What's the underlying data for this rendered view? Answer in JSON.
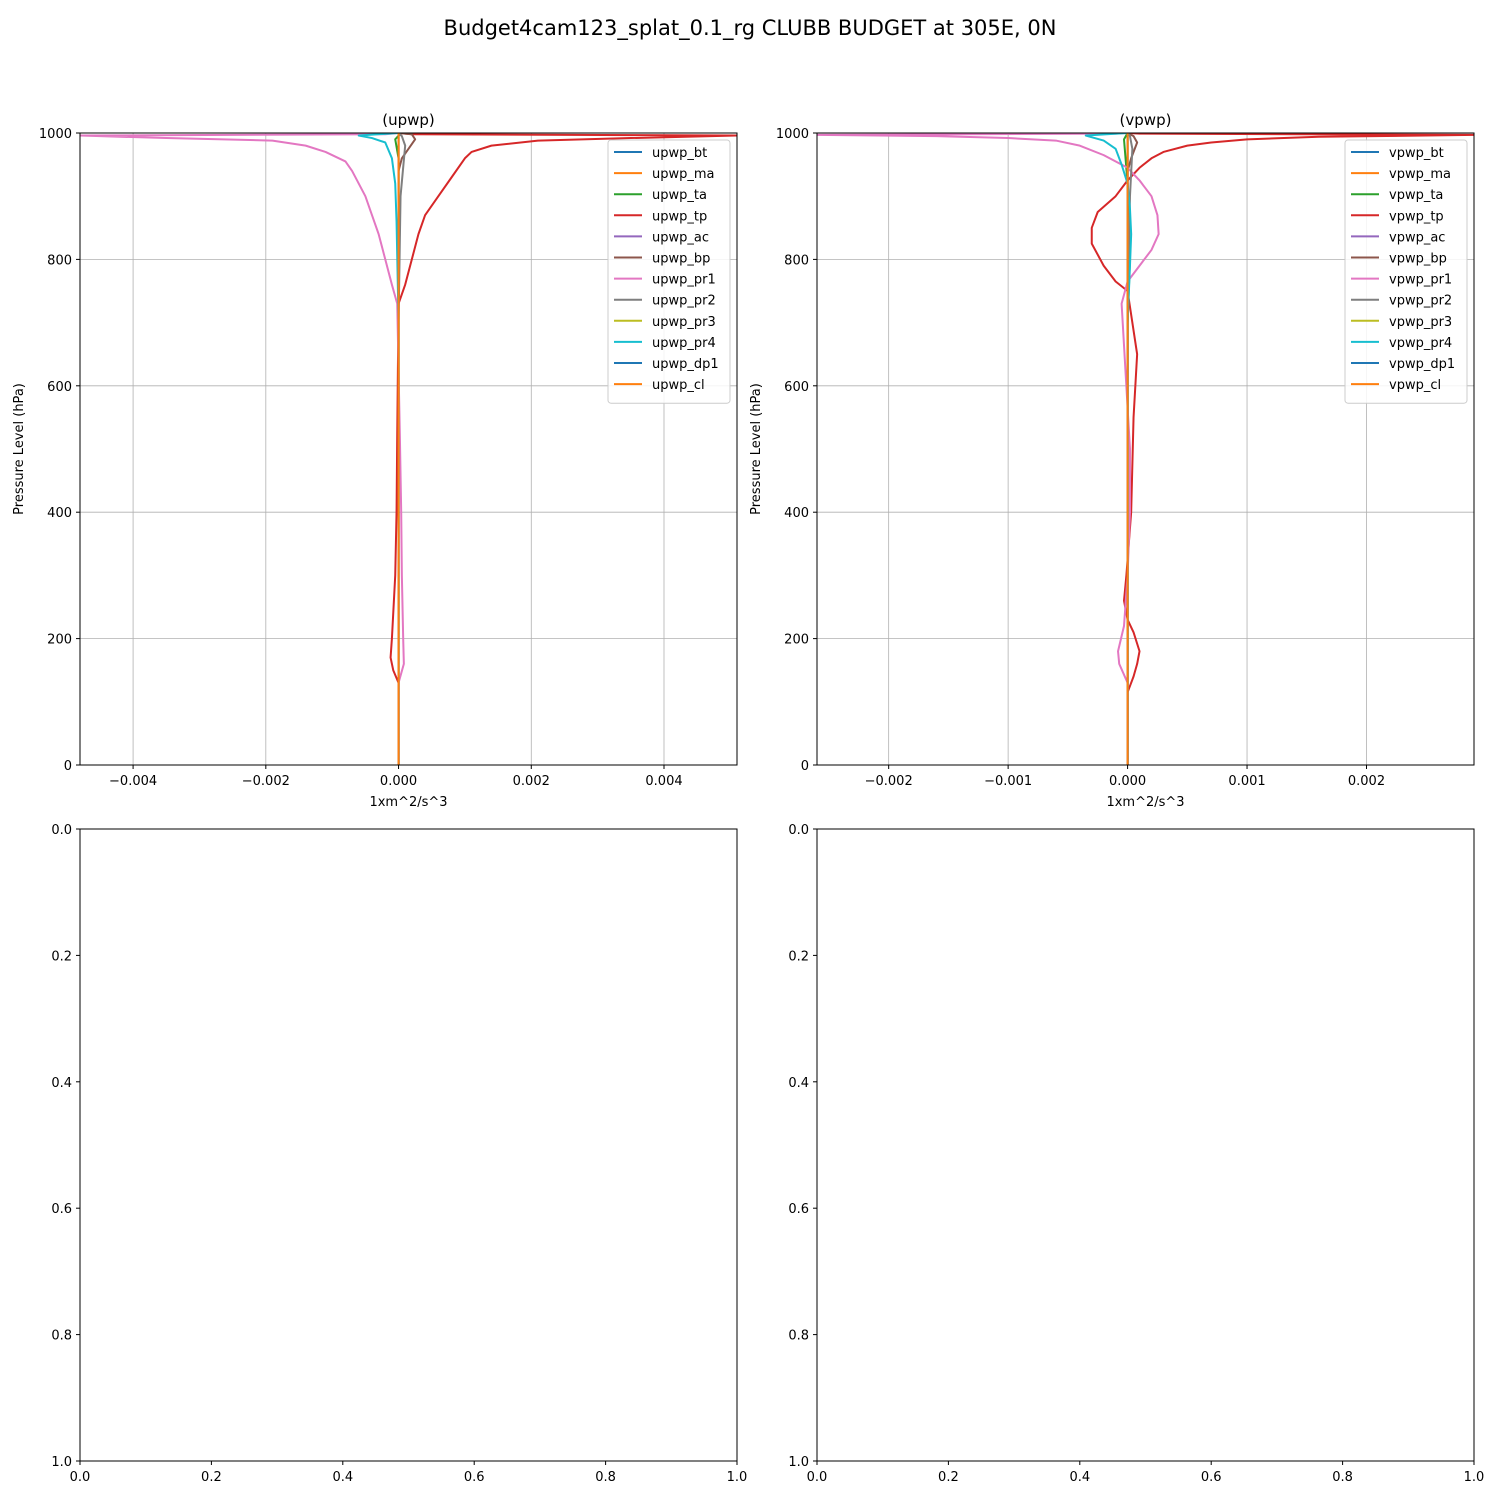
{
  "figure": {
    "title": "Budget4cam123_splat_0.1_rg CLUBB BUDGET at 305E, 0N"
  },
  "chart_data": [
    {
      "type": "line",
      "title": "(upwp)",
      "xlabel": "1xm^2/s^3",
      "ylabel": "Pressure Level (hPa)",
      "xlim": [
        -0.0048,
        0.0051
      ],
      "ylim": [
        1000,
        0
      ],
      "xticks": [
        -0.004,
        -0.002,
        0.0,
        0.002,
        0.004
      ],
      "xtick_labels": [
        "−0.004",
        "−0.002",
        "0.000",
        "0.002",
        "0.004"
      ],
      "yticks": [
        0,
        200,
        400,
        600,
        800,
        1000
      ],
      "ytick_labels": [
        "0",
        "200",
        "400",
        "600",
        "800",
        "1000"
      ],
      "grid": true,
      "legend": "top-right",
      "series": [
        {
          "name": "upwp_bt",
          "color": "#1f77b4",
          "x": [
            0,
            0,
            0,
            0
          ],
          "y": [
            0,
            500,
            990,
            1000
          ]
        },
        {
          "name": "upwp_ma",
          "color": "#ff7f0e",
          "x": [
            0,
            0,
            0,
            0
          ],
          "y": [
            0,
            500,
            990,
            1000
          ]
        },
        {
          "name": "upwp_ta",
          "color": "#2ca02c",
          "x": [
            0,
            0,
            0,
            0,
            -5e-05,
            2e-05,
            0
          ],
          "y": [
            0,
            500,
            900,
            960,
            990,
            998,
            1000
          ]
        },
        {
          "name": "upwp_tp",
          "color": "#d62728",
          "x": [
            0,
            0,
            -8e-05,
            -0.00012,
            -0.0001,
            -5e-05,
            -3e-05,
            -2e-05,
            0,
            0.0001,
            0.0002,
            0.0003,
            0.0004,
            0.0006,
            0.0008,
            0.001,
            0.0011,
            0.0014,
            0.0021,
            0.0035,
            0.0051,
            0.0002,
            0
          ],
          "y": [
            0,
            130,
            150,
            170,
            200,
            300,
            400,
            520,
            730,
            760,
            800,
            840,
            870,
            900,
            930,
            960,
            970,
            980,
            988,
            992,
            996,
            998,
            1000
          ]
        },
        {
          "name": "upwp_ac",
          "color": "#9467bd",
          "x": [
            0,
            0,
            0,
            0
          ],
          "y": [
            0,
            500,
            990,
            1000
          ]
        },
        {
          "name": "upwp_bp",
          "color": "#8c564b",
          "x": [
            0,
            0,
            0,
            5e-05,
            0.00015,
            0.00025,
            0.0002,
            0
          ],
          "y": [
            0,
            500,
            940,
            960,
            975,
            990,
            998,
            1000
          ]
        },
        {
          "name": "upwp_pr1",
          "color": "#e377c2",
          "x": [
            0,
            0,
            8e-05,
            7e-05,
            5e-05,
            4e-05,
            2e-05,
            -2e-05,
            -0.0001,
            -0.0002,
            -0.0003,
            -0.0004,
            -0.0005,
            -0.0006,
            -0.0007,
            -0.0008,
            -0.0011,
            -0.0014,
            -0.0019,
            -0.0035,
            -0.0048,
            -0.0002,
            0
          ],
          "y": [
            0,
            130,
            160,
            200,
            300,
            400,
            520,
            730,
            760,
            800,
            840,
            870,
            900,
            920,
            940,
            955,
            970,
            980,
            988,
            992,
            996,
            998,
            1000
          ]
        },
        {
          "name": "upwp_pr2",
          "color": "#7f7f7f",
          "x": [
            0,
            0,
            3e-05,
            0.0001,
            5e-05,
            0
          ],
          "y": [
            0,
            700,
            900,
            980,
            995,
            1000
          ]
        },
        {
          "name": "upwp_pr3",
          "color": "#bcbd22",
          "x": [
            0,
            0,
            0,
            0
          ],
          "y": [
            0,
            500,
            990,
            1000
          ]
        },
        {
          "name": "upwp_pr4",
          "color": "#17becf",
          "x": [
            0,
            0,
            -3e-05,
            -5e-05,
            -0.0001,
            -0.0002,
            -0.0004,
            -0.0006,
            0
          ],
          "y": [
            0,
            700,
            860,
            920,
            960,
            985,
            992,
            996,
            1000
          ]
        },
        {
          "name": "upwp_dp1",
          "color": "#1f77b4",
          "x": [
            0,
            0,
            0,
            0
          ],
          "y": [
            0,
            500,
            990,
            1000
          ]
        },
        {
          "name": "upwp_cl",
          "color": "#ff7f0e",
          "x": [
            0,
            0,
            0,
            0
          ],
          "y": [
            0,
            500,
            990,
            1000
          ]
        }
      ]
    },
    {
      "type": "line",
      "title": "(vpwp)",
      "xlabel": "1xm^2/s^3",
      "ylabel": "Pressure Level (hPa)",
      "xlim": [
        -0.0026,
        0.0029
      ],
      "ylim": [
        1000,
        0
      ],
      "xticks": [
        -0.002,
        -0.001,
        0.0,
        0.001,
        0.002
      ],
      "xtick_labels": [
        "−0.002",
        "−0.001",
        "0.000",
        "0.001",
        "0.002"
      ],
      "yticks": [
        0,
        200,
        400,
        600,
        800,
        1000
      ],
      "ytick_labels": [
        "0",
        "200",
        "400",
        "600",
        "800",
        "1000"
      ],
      "grid": true,
      "legend": "top-right",
      "series": [
        {
          "name": "vpwp_bt",
          "color": "#1f77b4",
          "x": [
            0,
            0,
            0,
            0
          ],
          "y": [
            0,
            500,
            990,
            1000
          ]
        },
        {
          "name": "vpwp_ma",
          "color": "#ff7f0e",
          "x": [
            0,
            0,
            0,
            0
          ],
          "y": [
            0,
            500,
            990,
            1000
          ]
        },
        {
          "name": "vpwp_ta",
          "color": "#2ca02c",
          "x": [
            0,
            0,
            2e-05,
            1e-05,
            0,
            -3e-05,
            0
          ],
          "y": [
            0,
            700,
            800,
            860,
            920,
            990,
            1000
          ]
        },
        {
          "name": "vpwp_tp",
          "color": "#d62728",
          "x": [
            0,
            0,
            5e-05,
            8e-05,
            0.0001,
            5e-05,
            0,
            -3e-05,
            -1e-05,
            3e-05,
            5e-05,
            8e-05,
            0,
            -0.0001,
            -0.0002,
            -0.0003,
            -0.0003,
            -0.00025,
            -0.0001,
            0,
            0.0001,
            0.0002,
            0.0003,
            0.0005,
            0.0007,
            0.001,
            0.0016,
            0.0029,
            0.0001,
            0
          ],
          "y": [
            0,
            115,
            140,
            160,
            180,
            210,
            230,
            260,
            300,
            400,
            550,
            650,
            750,
            765,
            790,
            825,
            850,
            875,
            900,
            925,
            945,
            960,
            970,
            980,
            985,
            990,
            994,
            997,
            999,
            1000
          ]
        },
        {
          "name": "vpwp_ac",
          "color": "#9467bd",
          "x": [
            0,
            0,
            0,
            0
          ],
          "y": [
            0,
            500,
            990,
            1000
          ]
        },
        {
          "name": "vpwp_bp",
          "color": "#8c564b",
          "x": [
            0,
            0,
            0,
            3e-05,
            8e-05,
            5e-05,
            0
          ],
          "y": [
            0,
            500,
            940,
            960,
            985,
            995,
            1000
          ]
        },
        {
          "name": "vpwp_pr1",
          "color": "#e377c2",
          "x": [
            0,
            0,
            -7e-05,
            -8e-05,
            -3e-05,
            0,
            2e-05,
            2e-05,
            -5e-05,
            0,
            0.0001,
            0.0002,
            0.00026,
            0.00025,
            0.0002,
            0.0001,
            0,
            -0.0002,
            -0.0004,
            -0.0006,
            -0.001,
            -0.0016,
            -0.0026,
            -0.0001,
            0
          ],
          "y": [
            0,
            130,
            160,
            180,
            220,
            300,
            400,
            500,
            730,
            765,
            790,
            815,
            840,
            870,
            900,
            925,
            945,
            965,
            980,
            988,
            992,
            995,
            997,
            999,
            1000
          ]
        },
        {
          "name": "vpwp_pr2",
          "color": "#7f7f7f",
          "x": [
            0,
            0,
            2e-05,
            4e-05,
            2e-05,
            0
          ],
          "y": [
            0,
            700,
            900,
            975,
            995,
            1000
          ]
        },
        {
          "name": "vpwp_pr3",
          "color": "#bcbd22",
          "x": [
            0,
            0,
            0,
            0
          ],
          "y": [
            0,
            500,
            990,
            1000
          ]
        },
        {
          "name": "vpwp_pr4",
          "color": "#17becf",
          "x": [
            0,
            0,
            2e-05,
            3e-05,
            2e-05,
            0,
            -5e-05,
            -0.0001,
            -0.0002,
            -0.00035,
            0
          ],
          "y": [
            0,
            700,
            790,
            840,
            880,
            920,
            950,
            975,
            988,
            996,
            1000
          ]
        },
        {
          "name": "vpwp_dp1",
          "color": "#1f77b4",
          "x": [
            0,
            0,
            0,
            0
          ],
          "y": [
            0,
            500,
            990,
            1000
          ]
        },
        {
          "name": "vpwp_cl",
          "color": "#ff7f0e",
          "x": [
            0,
            0,
            0,
            0
          ],
          "y": [
            0,
            500,
            990,
            1000
          ]
        }
      ]
    },
    {
      "type": "line",
      "xlim": [
        0,
        1
      ],
      "ylim": [
        0,
        1
      ],
      "xticks": [
        0,
        0.2,
        0.4,
        0.6,
        0.8,
        1.0
      ],
      "xtick_labels": [
        "0.0",
        "0.2",
        "0.4",
        "0.6",
        "0.8",
        "1.0"
      ],
      "yticks": [
        0,
        0.2,
        0.4,
        0.6,
        0.8,
        1.0
      ],
      "ytick_labels": [
        "0.0",
        "0.2",
        "0.4",
        "0.6",
        "0.8",
        "1.0"
      ],
      "grid": false,
      "series": []
    },
    {
      "type": "line",
      "xlim": [
        0,
        1
      ],
      "ylim": [
        0,
        1
      ],
      "xticks": [
        0,
        0.2,
        0.4,
        0.6,
        0.8,
        1.0
      ],
      "xtick_labels": [
        "0.0",
        "0.2",
        "0.4",
        "0.6",
        "0.8",
        "1.0"
      ],
      "yticks": [
        0,
        0.2,
        0.4,
        0.6,
        0.8,
        1.0
      ],
      "ytick_labels": [
        "0.0",
        "0.2",
        "0.4",
        "0.6",
        "0.8",
        "1.0"
      ],
      "grid": false,
      "series": []
    }
  ]
}
